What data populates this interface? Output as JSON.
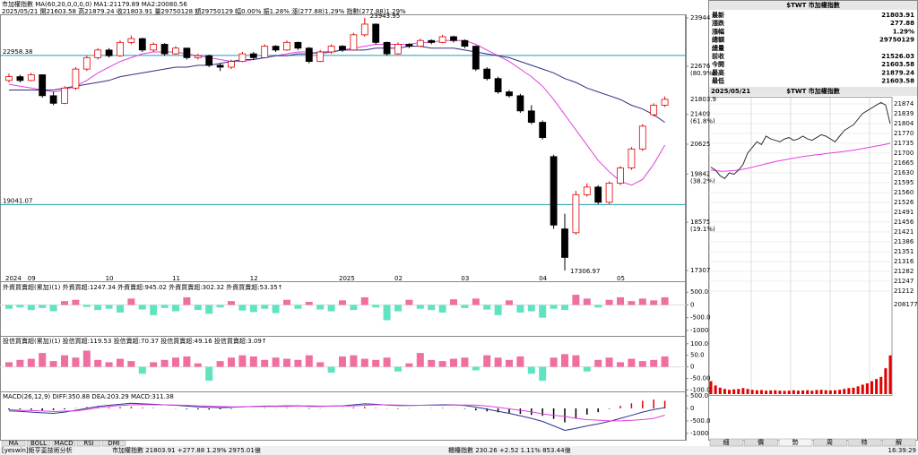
{
  "header": {
    "line1": "市加權指數 MA(60,20,0,0,0,0) MA1:21179.89 MA2:20080.56",
    "line2": "2025/05/21 開21603.58 高21879.24 收21803.91 量29750128 額29750129 幅0.00% 振1.28% 漲(277.88)1.29% 指數(277.88)1.29%"
  },
  "chart_data": [
    {
      "type": "candlestick",
      "up_color": "#e00000",
      "down_color": "#000000",
      "categories": [
        "2024",
        null,
        "09",
        null,
        null,
        null,
        null,
        null,
        null,
        "10",
        null,
        null,
        null,
        null,
        null,
        "11",
        null,
        null,
        null,
        null,
        null,
        null,
        "12",
        null,
        null,
        null,
        null,
        null,
        null,
        null,
        "2025",
        null,
        null,
        null,
        null,
        "02",
        null,
        null,
        null,
        null,
        null,
        "03",
        null,
        null,
        null,
        null,
        null,
        null,
        "04",
        null,
        null,
        null,
        null,
        null,
        null,
        "05",
        null,
        null,
        null,
        null
      ],
      "open": [
        22300,
        22400,
        22300,
        22450,
        21900,
        21700,
        22100,
        22600,
        22900,
        23100,
        22950,
        23300,
        23400,
        23100,
        23250,
        23000,
        23150,
        22900,
        22950,
        22700,
        22650,
        22800,
        23000,
        22900,
        23200,
        23100,
        23300,
        23150,
        22800,
        23050,
        23200,
        23100,
        23500,
        23780,
        23300,
        23000,
        23250,
        23200,
        23350,
        23300,
        23450,
        23350,
        23200,
        22600,
        22350,
        22000,
        21900,
        21500,
        21200,
        20300,
        18400,
        18300,
        19300,
        19500,
        19100,
        19600,
        20000,
        20500,
        21400,
        21650
      ],
      "high": [
        22480,
        22450,
        22500,
        22460,
        22000,
        22150,
        22650,
        22950,
        23150,
        23150,
        23350,
        23480,
        23420,
        23300,
        23280,
        23200,
        23160,
        23000,
        22980,
        22750,
        22850,
        23050,
        23050,
        23250,
        23230,
        23350,
        23320,
        23180,
        23100,
        23250,
        23230,
        23550,
        23943.95,
        23800,
        23320,
        23300,
        23280,
        23400,
        23380,
        23500,
        23480,
        23380,
        23220,
        22650,
        22400,
        22050,
        21950,
        21650,
        21250,
        20350,
        18800,
        19400,
        19600,
        19550,
        19650,
        20050,
        20550,
        21150,
        21700,
        21879.24
      ],
      "low": [
        22250,
        22250,
        22280,
        21850,
        21650,
        21680,
        22050,
        22550,
        22850,
        22900,
        22920,
        23250,
        23050,
        23050,
        22950,
        22980,
        22850,
        22850,
        22650,
        22550,
        22600,
        22780,
        22850,
        22880,
        23050,
        23080,
        23100,
        22750,
        22780,
        23000,
        23050,
        23080,
        23450,
        23250,
        22950,
        22980,
        23150,
        23180,
        23250,
        23280,
        23300,
        23150,
        22550,
        22300,
        21950,
        21850,
        21450,
        21150,
        20750,
        18400,
        17306.97,
        18250,
        19250,
        19050,
        19050,
        19550,
        19950,
        20450,
        21350,
        21603.58
      ],
      "close": [
        22400,
        22300,
        22450,
        21900,
        21700,
        22100,
        22600,
        22900,
        23100,
        22950,
        23300,
        23400,
        23100,
        23250,
        23000,
        23150,
        22900,
        22950,
        22700,
        22650,
        22800,
        23000,
        22900,
        23200,
        23100,
        23300,
        23150,
        22800,
        23050,
        23200,
        23100,
        23500,
        23780,
        23300,
        23000,
        23250,
        23200,
        23350,
        23300,
        23450,
        23350,
        23200,
        22600,
        22350,
        22000,
        21900,
        21500,
        21200,
        20800,
        18500,
        17650,
        19300,
        19500,
        19100,
        19600,
        20000,
        20500,
        21100,
        21650,
        21803.91
      ],
      "series": [
        {
          "color": "#e040e0",
          "values": [
            22200,
            22150,
            22100,
            22050,
            22000,
            22050,
            22150,
            22300,
            22500,
            22650,
            22800,
            22900,
            23000,
            23050,
            23050,
            23050,
            23000,
            22950,
            22900,
            22850,
            22800,
            22800,
            22850,
            22900,
            22950,
            23000,
            23050,
            23050,
            23000,
            23050,
            23100,
            23150,
            23200,
            23250,
            23250,
            23250,
            23250,
            23300,
            23300,
            23350,
            23350,
            23350,
            23250,
            23100,
            22950,
            22800,
            22600,
            22400,
            22150,
            21800,
            21400,
            21000,
            20600,
            20200,
            19900,
            19650,
            19550,
            19700,
            20100,
            20600
          ]
        },
        {
          "color": "#303080",
          "values": [
            22050,
            22050,
            22050,
            22050,
            22050,
            22100,
            22150,
            22200,
            22250,
            22300,
            22400,
            22450,
            22500,
            22550,
            22600,
            22650,
            22650,
            22700,
            22700,
            22750,
            22800,
            22850,
            22850,
            22900,
            22950,
            22950,
            23000,
            23000,
            23050,
            23050,
            23100,
            23100,
            23100,
            23150,
            23150,
            23150,
            23200,
            23200,
            23150,
            23150,
            23150,
            23100,
            23050,
            23000,
            22950,
            22900,
            22800,
            22700,
            22600,
            22500,
            22350,
            22250,
            22100,
            22000,
            21900,
            21800,
            21650,
            21550,
            21400,
            21200
          ]
        }
      ],
      "hlines": [
        22958.38,
        19041.07
      ],
      "hline_color": "#20a0b0",
      "ylim": [
        17213,
        24038
      ],
      "yticks": [
        23944,
        22676,
        21409,
        20625,
        19842,
        18575,
        17307
      ],
      "fib_labels": [
        {
          "value": 22676,
          "label": "(80.9%)"
        },
        {
          "value": 21409,
          "label": "(61.8%)"
        },
        {
          "value": 19842,
          "label": "(38.2%)"
        },
        {
          "value": 18575,
          "label": "(19.1%)"
        }
      ],
      "last_price_label": "21803.9"
    },
    {
      "type": "bar",
      "title": "外資買賣超(累加)(1) 外資買超:1247.34 外資賣超:945.02 外資買賣超:302.32 外資買賣超:53.35↑",
      "pos_color": "#f06ea0",
      "neg_color": "#5fe3c0",
      "values": [
        -150,
        -100,
        -200,
        -120,
        -250,
        150,
        200,
        -80,
        -200,
        -150,
        -300,
        250,
        -180,
        -400,
        -120,
        -250,
        300,
        -200,
        -350,
        -100,
        150,
        -220,
        -280,
        -150,
        -320,
        200,
        -150,
        120,
        -180,
        -250,
        180,
        -200,
        300,
        -100,
        -600,
        -250,
        200,
        -150,
        -200,
        -300,
        220,
        -120,
        250,
        -180,
        -400,
        180,
        -300,
        -250,
        -500,
        -150,
        -200,
        400,
        250,
        -100,
        200,
        300,
        150,
        250,
        180,
        300
      ],
      "ylim": [
        -1180,
        860
      ],
      "yticks": [
        {
          "value": 500,
          "label": "500.0"
        },
        0,
        {
          "value": -500,
          "label": "-500.0"
        },
        -1000
      ]
    },
    {
      "type": "bar",
      "title": "投信買賣超(累加)(1) 投信買超:119.53 投信賣超:70.37 投信買賣超:49.16 投信買賣超:3.09↑",
      "pos_color": "#f06ea0",
      "neg_color": "#5fe3c0",
      "values": [
        20,
        30,
        35,
        60,
        25,
        50,
        40,
        70,
        30,
        20,
        35,
        25,
        -30,
        20,
        30,
        40,
        45,
        15,
        -60,
        25,
        40,
        50,
        45,
        30,
        40,
        35,
        30,
        50,
        20,
        -25,
        45,
        50,
        35,
        30,
        40,
        -20,
        15,
        60,
        30,
        25,
        35,
        40,
        -15,
        50,
        40,
        30,
        45,
        -30,
        -60,
        40,
        55,
        50,
        -20,
        30,
        40,
        20,
        35,
        25,
        30,
        45
      ],
      "ylim": [
        -110,
        130
      ],
      "yticks": [
        {
          "value": 100,
          "label": "100.0"
        },
        {
          "value": 50,
          "label": "50.0"
        },
        0,
        {
          "value": -50,
          "label": "-50.00"
        },
        {
          "value": -100,
          "label": "-100.0"
        }
      ]
    },
    {
      "type": "macd",
      "title": "MACD(26,12,9) DIFF:350.88 DEA:203.29 MACD:311.38",
      "pos_color": "#e00000",
      "neg_color": "#000000",
      "dif_color": "#303090",
      "macd_color": "#e040e0",
      "osc": [
        -50,
        -40,
        -60,
        -80,
        -70,
        -40,
        20,
        50,
        60,
        40,
        50,
        60,
        30,
        20,
        0,
        -10,
        -30,
        -40,
        -50,
        -40,
        -20,
        0,
        10,
        20,
        10,
        20,
        10,
        -20,
        -10,
        0,
        10,
        40,
        60,
        20,
        -10,
        -20,
        -10,
        0,
        10,
        20,
        10,
        -20,
        -80,
        -120,
        -160,
        -180,
        -220,
        -260,
        -300,
        -420,
        -560,
        -400,
        -250,
        -150,
        -20,
        100,
        200,
        300,
        350,
        300
      ],
      "dif": [
        -100,
        -120,
        -150,
        -180,
        -200,
        -150,
        -80,
        0,
        80,
        120,
        160,
        200,
        180,
        160,
        140,
        120,
        90,
        60,
        40,
        30,
        40,
        60,
        80,
        90,
        90,
        100,
        100,
        80,
        80,
        90,
        100,
        140,
        180,
        160,
        130,
        110,
        110,
        120,
        130,
        140,
        140,
        110,
        50,
        -30,
        -120,
        -200,
        -300,
        -400,
        -520,
        -700,
        -880,
        -800,
        -700,
        -620,
        -520,
        -400,
        -280,
        -150,
        -50,
        30
      ],
      "macd": [
        -50,
        -80,
        -90,
        -100,
        -130,
        -110,
        -100,
        -50,
        20,
        80,
        110,
        140,
        150,
        140,
        140,
        130,
        120,
        100,
        90,
        70,
        60,
        60,
        70,
        70,
        80,
        80,
        90,
        100,
        90,
        90,
        90,
        100,
        120,
        140,
        140,
        130,
        120,
        120,
        120,
        120,
        130,
        130,
        130,
        90,
        40,
        -20,
        -80,
        -140,
        -220,
        -280,
        -320,
        -400,
        -450,
        -470,
        -500,
        -500,
        -480,
        -450,
        -400,
        -270
      ],
      "ylim": [
        -1290,
        640
      ],
      "yticks": [
        {
          "value": 500,
          "label": "500.0"
        },
        0,
        {
          "value": -500,
          "label": "-500.0"
        },
        -1000
      ]
    },
    {
      "type": "intraday",
      "title": "2025/05/21",
      "subtitle": "$TWT 市加權指數",
      "price_color": "#303030",
      "avg_color": "#e040e0",
      "volume_color": "#e00000",
      "values": [
        21650,
        21640,
        21620,
        21610,
        21630,
        21625,
        21640,
        21660,
        21700,
        21720,
        21740,
        21730,
        21760,
        21750,
        21745,
        21740,
        21750,
        21755,
        21745,
        21750,
        21760,
        21750,
        21745,
        21755,
        21765,
        21760,
        21750,
        21740,
        21760,
        21780,
        21790,
        21800,
        21820,
        21840,
        21850,
        21860,
        21870,
        21879,
        21870,
        21803.91
      ],
      "avg": [
        21640,
        21638,
        21636,
        21636,
        21637,
        21638,
        21640,
        21643,
        21646,
        21650,
        21654,
        21658,
        21662,
        21666,
        21670,
        21673,
        21676,
        21679,
        21682,
        21685,
        21688,
        21690,
        21692,
        21694,
        21696,
        21698,
        21700,
        21702,
        21704,
        21706,
        21708,
        21710,
        21713,
        21716,
        21719,
        21722,
        21725,
        21728,
        21731,
        21735
      ],
      "volume": [
        30000,
        20000,
        15000,
        12000,
        10000,
        11000,
        12000,
        14000,
        12000,
        10000,
        9000,
        9500,
        8000,
        8500,
        9000,
        8000,
        7500,
        8000,
        9000,
        8000,
        8500,
        9000,
        8000,
        9500,
        10000,
        9000,
        8500,
        9000,
        10000,
        12000,
        14000,
        15000,
        18000,
        22000,
        25000,
        30000,
        35000,
        40000,
        60000,
        90000
      ],
      "ylim": [
        21196,
        21893
      ],
      "yticks": [
        21874,
        21839,
        21804,
        21770,
        21735,
        21700,
        21665,
        21630,
        21595,
        21560,
        21526,
        21491,
        21456,
        21421,
        21386,
        21351,
        21316,
        21282,
        21247,
        21212
      ],
      "volume_ylim": [
        0,
        208177
      ],
      "volume_ticks": [
        208177
      ]
    }
  ],
  "quote": {
    "title": "$TWT 市加權指數",
    "rows": [
      {
        "label": "最新",
        "value": "21803.91",
        "color": "#e00000"
      },
      {
        "label": "漲跌",
        "value": "277.88",
        "color": "#e00000"
      },
      {
        "label": "漲幅",
        "value": "1.29%",
        "color": "#e00000"
      },
      {
        "label": "總額",
        "value": "29750129",
        "color": "#000000"
      },
      {
        "label": "總量"
      },
      {
        "label": "前收",
        "value": "21526.03",
        "color": "#000000"
      },
      {
        "label": "今開",
        "value": "21603.58",
        "color": "#e00000"
      },
      {
        "label": "最高",
        "value": "21879.24",
        "color": "#e00000"
      },
      {
        "label": "最低",
        "value": "21603.58",
        "color": "#e00000"
      }
    ]
  },
  "indicator_tabs": [
    "MA",
    "BOLL",
    "MACD",
    "RSI",
    "DMI"
  ],
  "side_tabs": [
    "細",
    "價",
    "勢",
    "周",
    "特",
    "解"
  ],
  "footer": {
    "brand": "[yeswin]鉅亨盃技術分析",
    "index1": "市加權指數 21803.91 +277.88 1.29% 2975.01億",
    "index2": "櫃檯指數 230.26 +2.52 1.11% 853.44億",
    "time": "16:39:29"
  }
}
